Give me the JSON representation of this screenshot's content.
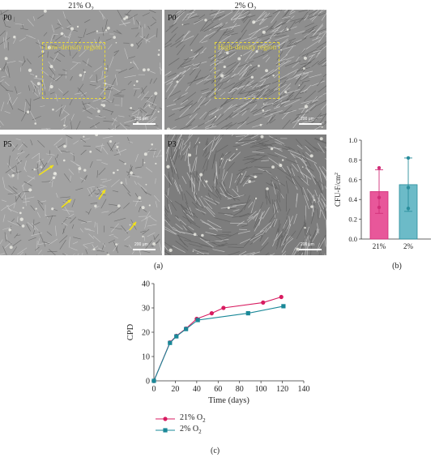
{
  "figure_a": {
    "col_21": {
      "base": "21% O",
      "sub": "2"
    },
    "col_2": {
      "base": "2% O",
      "sub": "2"
    },
    "images": [
      {
        "label": "P0",
        "region": "Low-density region",
        "scale": "200 μm",
        "tone": "#9a9a9a"
      },
      {
        "label": "P0",
        "region": "High-density region",
        "scale": "200 μm",
        "tone": "#8e8e8e"
      },
      {
        "label": "P5",
        "region": "",
        "scale": "200 μm",
        "tone": "#a2a2a2"
      },
      {
        "label": "P3",
        "region": "",
        "scale": "200 μm",
        "tone": "#7d7d7d"
      }
    ],
    "caption": "(a)"
  },
  "arrow_color": "#f2e21a",
  "chart_data": [
    {
      "type": "bar",
      "categories": [
        "21%",
        "2%"
      ],
      "values": [
        0.48,
        0.55
      ],
      "errors": [
        0.22,
        0.27
      ],
      "points": [
        [
          0.72,
          0.42,
          0.32
        ],
        [
          0.82,
          0.52,
          0.31
        ]
      ],
      "colors": [
        "#e8579a",
        "#6cbbc8"
      ],
      "edge_colors": [
        "#d12e78",
        "#2a8d9c"
      ],
      "ylabel": {
        "base": "CFU-F/cm",
        "sup": "2"
      },
      "ylim": [
        0,
        1.0
      ],
      "yticks": [
        "0.0",
        "0.2",
        "0.4",
        "0.6",
        "0.8",
        "1.0"
      ],
      "caption": "(b)"
    },
    {
      "type": "line",
      "xlabel": "Time (days)",
      "ylabel": "CPD",
      "xlim": [
        0,
        140
      ],
      "ylim": [
        0,
        40
      ],
      "xticks": [
        "0",
        "20",
        "40",
        "60",
        "80",
        "100",
        "120",
        "140"
      ],
      "yticks": [
        "0",
        "10",
        "20",
        "30",
        "40"
      ],
      "series": [
        {
          "name": {
            "base": "21% O",
            "sub": "2"
          },
          "color": "#d81b60",
          "marker": "circle",
          "x": [
            0,
            15,
            21,
            30,
            40,
            54,
            65,
            102,
            119
          ],
          "y": [
            0,
            15.8,
            18.5,
            21.5,
            25.5,
            27.8,
            30.0,
            32.2,
            34.5
          ]
        },
        {
          "name": {
            "base": "2% O",
            "sub": "2"
          },
          "color": "#1a8898",
          "marker": "square",
          "x": [
            0,
            15,
            21,
            30,
            41,
            88,
            121
          ],
          "y": [
            0,
            15.6,
            18.3,
            21.3,
            25.0,
            27.8,
            30.7
          ]
        }
      ],
      "caption": "(c)"
    }
  ]
}
